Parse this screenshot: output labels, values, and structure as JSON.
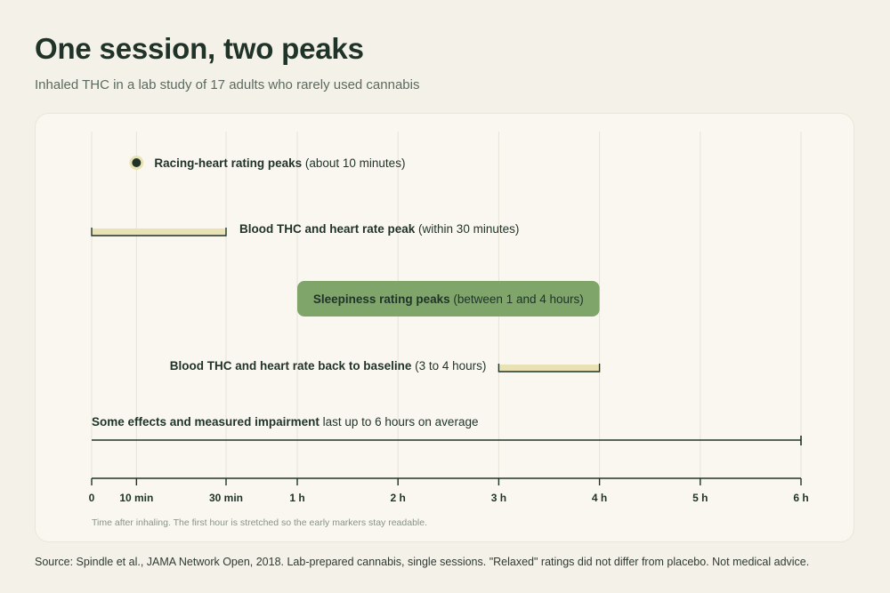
{
  "header": {
    "title": "One session, two peaks",
    "subtitle": "Inhaled THC in a lab study of 17 adults who rarely used cannabis"
  },
  "footer": {
    "source": "Source: Spindle et al., JAMA Network Open, 2018. Lab-prepared cannabis, single sessions. \"Relaxed\" ratings did not differ from placebo. Not medical advice."
  },
  "colors": {
    "text": "#1f3328",
    "gridline": "#e7e3d8",
    "range_fill": "#e8e2b4",
    "sleep_fill": "#7fa56a",
    "dot_ring": "#e8e2b4",
    "note": "#8a9288"
  },
  "chart_data": {
    "type": "timeline",
    "x_unit": "hours after inhaling",
    "xlim": [
      0,
      6
    ],
    "x_ticks": [
      {
        "value": 0,
        "label": "0"
      },
      {
        "value": 0.1667,
        "label": "10 min"
      },
      {
        "value": 0.5,
        "label": "30 min"
      },
      {
        "value": 1,
        "label": "1 h"
      },
      {
        "value": 2,
        "label": "2 h"
      },
      {
        "value": 3,
        "label": "3 h"
      },
      {
        "value": 4,
        "label": "4 h"
      },
      {
        "value": 5,
        "label": "5 h"
      },
      {
        "value": 6,
        "label": "6 h"
      }
    ],
    "axis_note": "Time after inhaling. The first hour is stretched so the early markers stay readable.",
    "events": [
      {
        "id": "racing-heart",
        "kind": "point",
        "at": 0.1667,
        "label_bold": "Racing-heart rating peaks",
        "label_rest": "(about 10 minutes)"
      },
      {
        "id": "blood-thc-peak",
        "kind": "range",
        "start": 0,
        "end": 0.5,
        "label_bold": "Blood THC and heart rate peak",
        "label_rest": "(within 30 minutes)"
      },
      {
        "id": "sleepiness",
        "kind": "block",
        "start": 1,
        "end": 4,
        "label_bold": "Sleepiness rating peaks",
        "label_rest": "(between 1 and 4 hours)"
      },
      {
        "id": "baseline",
        "kind": "range",
        "start": 3,
        "end": 4,
        "label_bold": "Blood THC and heart rate back to baseline",
        "label_rest": "(3 to 4 hours)"
      },
      {
        "id": "impairment",
        "kind": "line",
        "start": 0,
        "end": 6,
        "label_bold": "Some effects and measured impairment",
        "label_rest": "last up to 6 hours on average"
      }
    ]
  }
}
